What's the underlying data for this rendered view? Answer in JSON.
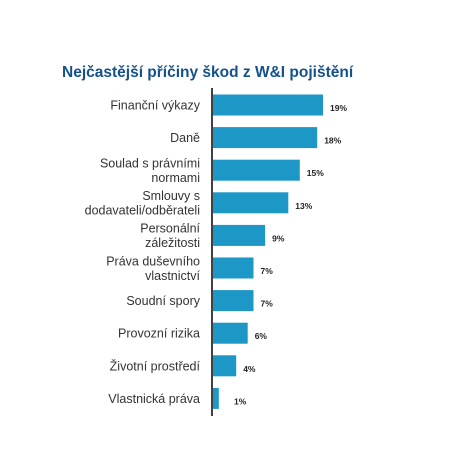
{
  "chart_data": {
    "type": "bar",
    "orientation": "horizontal",
    "title": "Nejčastější příčiny škod z W&I pojištění",
    "categories": [
      [
        "Finanční výkazy"
      ],
      [
        "Daně"
      ],
      [
        "Soulad s právními",
        "normami"
      ],
      [
        "Smlouvy s",
        "dodavateli/odběrateli"
      ],
      [
        "Personální",
        "záležitosti"
      ],
      [
        "Práva duševního",
        "vlastnictví"
      ],
      [
        "Soudní spory"
      ],
      [
        "Provozní rizika"
      ],
      [
        "Životní prostředí"
      ],
      [
        "Vlastnická práva"
      ]
    ],
    "values": [
      19,
      18,
      15,
      13,
      9,
      7,
      7,
      6,
      4,
      1
    ],
    "value_labels": [
      "19%",
      "18%",
      "15%",
      "13%",
      "9%",
      "7%",
      "7%",
      "6%",
      "4%",
      "1%"
    ],
    "xlim": [
      0,
      20
    ],
    "bar_color": "#1d97c6",
    "axis_color": "#111111",
    "title_color": "#14528c",
    "grid": false,
    "legend": "none"
  }
}
